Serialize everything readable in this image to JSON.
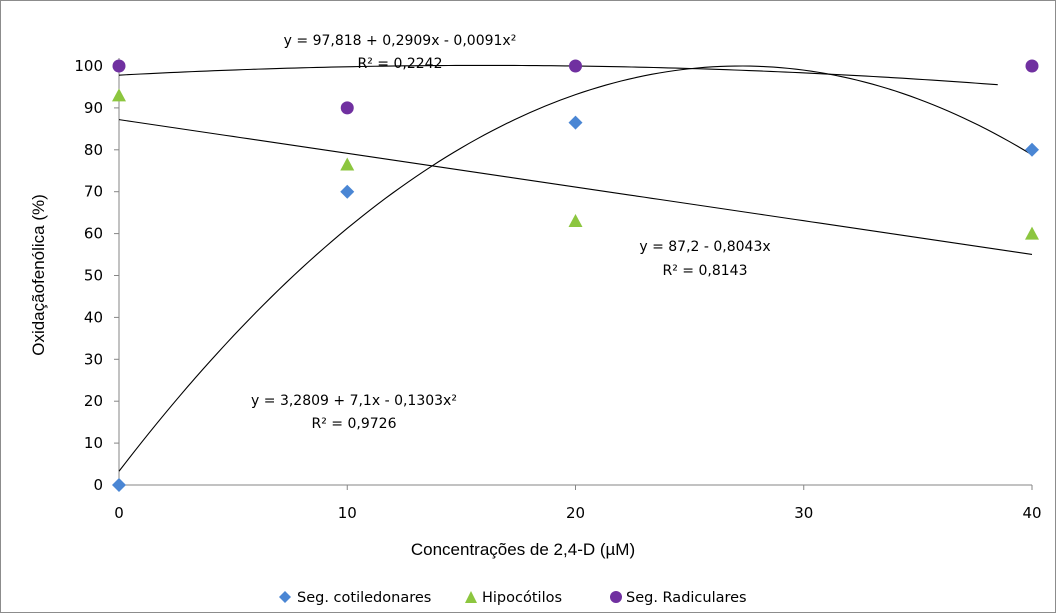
{
  "chart_data": {
    "type": "scatter",
    "title": "",
    "xlabel": "Concentrações de 2,4-D (µM)",
    "ylabel": "Oxidaçãofenólica (%)",
    "xlim": [
      0,
      40
    ],
    "ylim": [
      0,
      100
    ],
    "x_ticks": [
      0,
      10,
      20,
      30,
      40
    ],
    "y_ticks": [
      0,
      10,
      20,
      30,
      40,
      50,
      60,
      70,
      80,
      90,
      100
    ],
    "grid": false,
    "legend_position": "bottom",
    "series": [
      {
        "name": "Seg. cotiledonares",
        "marker": "diamond",
        "color": "#4a86d4",
        "x": [
          0,
          10,
          20,
          40
        ],
        "y": [
          0,
          70,
          86.5,
          80
        ]
      },
      {
        "name": "Hipocótilos",
        "marker": "triangle",
        "color": "#8cc63f",
        "x": [
          0,
          10,
          20,
          40
        ],
        "y": [
          93,
          76.5,
          63,
          60
        ]
      },
      {
        "name": "Seg. Radiculares",
        "marker": "circle",
        "color": "#7030a0",
        "x": [
          0,
          10,
          20,
          40
        ],
        "y": [
          100,
          90,
          100,
          100
        ]
      }
    ],
    "trendlines": [
      {
        "x_range": [
          0,
          38.5
        ],
        "coefficients": [
          97.818,
          0.2909,
          -0.0091
        ],
        "equation": "y = 97,818  +  0,2909x - 0,0091x²",
        "r2": "R² = 0,2242"
      },
      {
        "x_range": [
          0,
          40
        ],
        "coefficients": [
          87.2,
          -0.8043
        ],
        "equation": "y = 87,2 - 0,8043x",
        "r2": "R² = 0,8143"
      },
      {
        "x_range": [
          0,
          40
        ],
        "coefficients": [
          3.2809,
          7.1,
          -0.1303
        ],
        "equation": "y = 3,2809 + 7,1x - 0,1303x²",
        "r2": "R² = 0,9726"
      }
    ]
  }
}
